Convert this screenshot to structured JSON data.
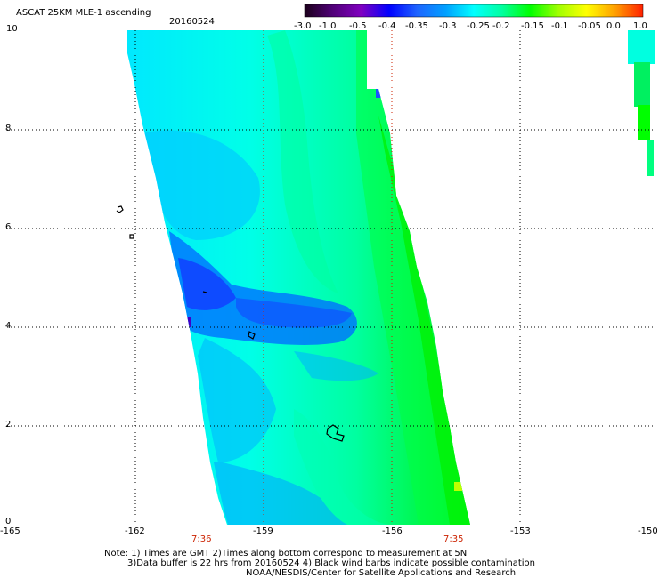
{
  "header": {
    "title": "ASCAT 25KM MLE-1 ascending",
    "date": "20160524"
  },
  "colorbar": {
    "labels": [
      "-3.0",
      "-1.0",
      "-0.5",
      "-0.4",
      "-0.35",
      "-0.3",
      "-0.25",
      "-0.2",
      "-0.15",
      "-0.1",
      "-0.05",
      "0.0",
      "1.0"
    ],
    "colors": [
      "#1a001a",
      "#500078",
      "#8000c0",
      "#0000ff",
      "#1e64ff",
      "#00a0ff",
      "#00ffff",
      "#00ffa0",
      "#00ff00",
      "#a0ff00",
      "#ffff00",
      "#ffa000",
      "#ff2000"
    ]
  },
  "axes": {
    "x_ticks": [
      "-165",
      "-162",
      "-159",
      "-156",
      "-153",
      "-150"
    ],
    "y_ticks": [
      "0",
      "2",
      "4",
      "6",
      "8",
      "10"
    ],
    "time_labels": [
      "7:36",
      "7:35"
    ],
    "time_color": "#cc2200"
  },
  "footer": {
    "line1": "Note: 1) Times are GMT 2)Times along bottom correspond to measurement at 5N",
    "line2": "3)Data buffer is 22 hrs from 20160524 4) Black wind barbs indicate possible contamination",
    "line3": "NOAA/NESDIS/Center for Satellite Applications and Research"
  }
}
